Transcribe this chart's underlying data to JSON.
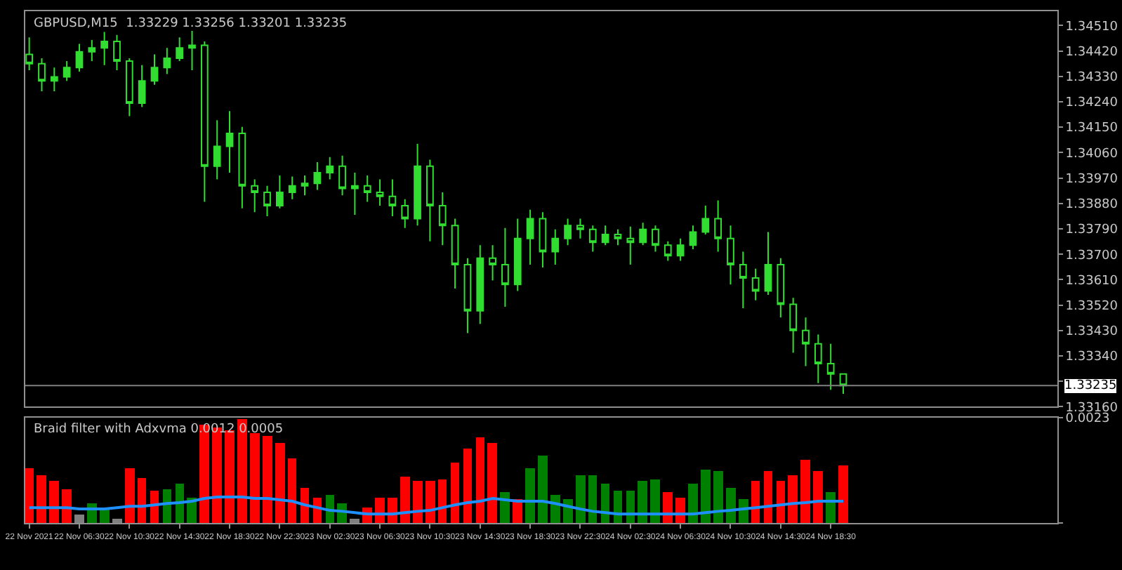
{
  "chart_data": [
    {
      "type": "candlestick",
      "title": "GBPUSD,M15  1.33229 1.33256 1.33201 1.33235",
      "color": "#32dd32",
      "tick_labels": "y",
      "x": [
        "2021-11-22T02:30",
        "2021-11-22T03:30",
        "2021-11-22T04:30",
        "2021-11-22T05:30",
        "2021-11-22T06:30",
        "2021-11-22T07:30",
        "2021-11-22T08:30",
        "2021-11-22T09:30",
        "2021-11-22T10:30",
        "2021-11-22T11:30",
        "2021-11-22T12:30",
        "2021-11-22T13:30",
        "2021-11-22T14:30",
        "2021-11-22T15:30",
        "2021-11-22T16:30",
        "2021-11-22T17:30",
        "2021-11-22T18:30",
        "2021-11-22T19:30",
        "2021-11-22T20:30",
        "2021-11-22T21:30",
        "2021-11-22T22:30",
        "2021-11-22T23:30",
        "2021-11-23T00:30",
        "2021-11-23T01:30",
        "2021-11-23T02:30",
        "2021-11-23T03:30",
        "2021-11-23T04:30",
        "2021-11-23T05:30",
        "2021-11-23T06:30",
        "2021-11-23T07:30",
        "2021-11-23T08:30",
        "2021-11-23T09:30",
        "2021-11-23T10:30",
        "2021-11-23T11:30",
        "2021-11-23T12:30",
        "2021-11-23T13:30",
        "2021-11-23T14:30",
        "2021-11-23T15:30",
        "2021-11-23T16:30",
        "2021-11-23T17:30",
        "2021-11-23T18:30",
        "2021-11-23T19:30",
        "2021-11-23T20:30",
        "2021-11-23T21:30",
        "2021-11-23T22:30",
        "2021-11-23T23:30",
        "2021-11-24T00:30",
        "2021-11-24T01:30",
        "2021-11-24T02:30",
        "2021-11-24T03:30",
        "2021-11-24T04:30",
        "2021-11-24T05:30",
        "2021-11-24T06:30",
        "2021-11-24T07:30",
        "2021-11-24T08:30",
        "2021-11-24T09:30",
        "2021-11-24T10:30",
        "2021-11-24T11:30",
        "2021-11-24T12:30",
        "2021-11-24T13:30",
        "2021-11-24T14:30",
        "2021-11-24T15:30",
        "2021-11-24T16:30",
        "2021-11-24T17:30",
        "2021-11-24T18:30",
        "2021-11-24T19:30"
      ],
      "ohlc": [
        [
          1.34408,
          1.34468,
          1.34352,
          1.34375
        ],
        [
          1.34375,
          1.34394,
          1.34277,
          1.34314
        ],
        [
          1.34314,
          1.34361,
          1.34277,
          1.34328
        ],
        [
          1.34328,
          1.34384,
          1.34314,
          1.34361
        ],
        [
          1.34361,
          1.34445,
          1.34347,
          1.34417
        ],
        [
          1.34417,
          1.34459,
          1.34384,
          1.34431
        ],
        [
          1.34431,
          1.34487,
          1.3437,
          1.34454
        ],
        [
          1.34454,
          1.34477,
          1.34352,
          1.34384
        ],
        [
          1.34384,
          1.34394,
          1.34189,
          1.34235
        ],
        [
          1.34235,
          1.3437,
          1.34221,
          1.34314
        ],
        [
          1.34314,
          1.34408,
          1.343,
          1.34361
        ],
        [
          1.34361,
          1.34431,
          1.34338,
          1.34394
        ],
        [
          1.34394,
          1.34468,
          1.34384,
          1.34431
        ],
        [
          1.34431,
          1.34491,
          1.34352,
          1.3444
        ],
        [
          1.3444,
          1.34454,
          1.33886,
          1.34012
        ],
        [
          1.34012,
          1.34175,
          1.33965,
          1.34082
        ],
        [
          1.34082,
          1.34207,
          1.33989,
          1.34128
        ],
        [
          1.34128,
          1.34151,
          1.33863,
          1.33942
        ],
        [
          1.33942,
          1.33965,
          1.33849,
          1.33919
        ],
        [
          1.33919,
          1.33942,
          1.33835,
          1.33872
        ],
        [
          1.33872,
          1.33979,
          1.33863,
          1.33919
        ],
        [
          1.33919,
          1.33975,
          1.33895,
          1.33942
        ],
        [
          1.33942,
          1.33979,
          1.33909,
          1.33951
        ],
        [
          1.33951,
          1.34026,
          1.33928,
          1.33989
        ],
        [
          1.33989,
          1.34044,
          1.33965,
          1.34012
        ],
        [
          1.34012,
          1.34049,
          1.33909,
          1.33933
        ],
        [
          1.33933,
          1.33989,
          1.3384,
          1.33942
        ],
        [
          1.33942,
          1.33979,
          1.33886,
          1.33919
        ],
        [
          1.33919,
          1.33965,
          1.33872,
          1.33905
        ],
        [
          1.33905,
          1.33965,
          1.33835,
          1.33872
        ],
        [
          1.33872,
          1.33895,
          1.33793,
          1.33826
        ],
        [
          1.33826,
          1.34091,
          1.33802,
          1.34012
        ],
        [
          1.34012,
          1.34035,
          1.33746,
          1.33872
        ],
        [
          1.33872,
          1.33919,
          1.33732,
          1.33802
        ],
        [
          1.33802,
          1.33826,
          1.33579,
          1.33663
        ],
        [
          1.33663,
          1.33686,
          1.33421,
          1.335
        ],
        [
          1.335,
          1.33732,
          1.33453,
          1.33686
        ],
        [
          1.33686,
          1.33732,
          1.33607,
          1.33663
        ],
        [
          1.33663,
          1.33793,
          1.33514,
          1.33593
        ],
        [
          1.33593,
          1.33826,
          1.3357,
          1.33756
        ],
        [
          1.33756,
          1.33858,
          1.33663,
          1.33826
        ],
        [
          1.33826,
          1.33849,
          1.33653,
          1.33709
        ],
        [
          1.33709,
          1.33788,
          1.33663,
          1.33756
        ],
        [
          1.33756,
          1.33826,
          1.33732,
          1.33802
        ],
        [
          1.33802,
          1.33826,
          1.33756,
          1.33788
        ],
        [
          1.33788,
          1.33802,
          1.33709,
          1.33742
        ],
        [
          1.33742,
          1.33802,
          1.33732,
          1.3377
        ],
        [
          1.3377,
          1.33788,
          1.33732,
          1.33756
        ],
        [
          1.33756,
          1.33798,
          1.33663,
          1.33742
        ],
        [
          1.33742,
          1.33812,
          1.33732,
          1.33788
        ],
        [
          1.33788,
          1.33802,
          1.33709,
          1.33732
        ],
        [
          1.33732,
          1.33746,
          1.33677,
          1.33695
        ],
        [
          1.33695,
          1.33756,
          1.33677,
          1.33732
        ],
        [
          1.33732,
          1.33802,
          1.33718,
          1.33779
        ],
        [
          1.33779,
          1.33872,
          1.3377,
          1.33826
        ],
        [
          1.33826,
          1.33891,
          1.33709,
          1.33756
        ],
        [
          1.33756,
          1.33802,
          1.33593,
          1.33663
        ],
        [
          1.33663,
          1.33709,
          1.33509,
          1.33616
        ],
        [
          1.33616,
          1.33649,
          1.33537,
          1.3357
        ],
        [
          1.3357,
          1.33779,
          1.33556,
          1.33663
        ],
        [
          1.33663,
          1.33686,
          1.33476,
          1.33523
        ],
        [
          1.33523,
          1.33546,
          1.33351,
          1.3343
        ],
        [
          1.3343,
          1.33476,
          1.33304,
          1.33383
        ],
        [
          1.33383,
          1.33416,
          1.33244,
          1.33313
        ],
        [
          1.33313,
          1.33383,
          1.3322,
          1.33276
        ],
        [
          1.33276,
          1.33276,
          1.33206,
          1.33235
        ]
      ],
      "xlim": [
        "2021-11-22T02:11",
        "2021-11-25T12:36"
      ],
      "ylim": [
        1.3316,
        1.34561
      ],
      "yticks": [
        {
          "value": 1.3451,
          "label": "1.34510"
        },
        {
          "value": 1.3442,
          "label": "1.34420"
        },
        {
          "value": 1.3433,
          "label": "1.34330"
        },
        {
          "value": 1.3424,
          "label": "1.34240"
        },
        {
          "value": 1.3415,
          "label": "1.34150"
        },
        {
          "value": 1.3406,
          "label": "1.34060"
        },
        {
          "value": 1.3397,
          "label": "1.33970"
        },
        {
          "value": 1.3388,
          "label": "1.33880"
        },
        {
          "value": 1.3379,
          "label": "1.33790"
        },
        {
          "value": 1.337,
          "label": "1.33700"
        },
        {
          "value": 1.3361,
          "label": "1.33610"
        },
        {
          "value": 1.3352,
          "label": "1.33520"
        },
        {
          "value": 1.3343,
          "label": "1.33430"
        },
        {
          "value": 1.3334,
          "label": "1.33340"
        },
        {
          "value": 1.3325,
          "label": null
        },
        {
          "value": 1.3316,
          "label": "1.33160"
        }
      ],
      "ref_lines": [
        {
          "axis": "y",
          "value": 1.33235,
          "label": "1.33235",
          "color": "#808080"
        }
      ]
    },
    {
      "type": "bar",
      "title": "Braid filter with Adxvma 0.0012 0.0005",
      "x": [
        "2021-11-22T02:30",
        "2021-11-22T03:30",
        "2021-11-22T04:30",
        "2021-11-22T05:30",
        "2021-11-22T06:30",
        "2021-11-22T07:30",
        "2021-11-22T08:30",
        "2021-11-22T09:30",
        "2021-11-22T10:30",
        "2021-11-22T11:30",
        "2021-11-22T12:30",
        "2021-11-22T13:30",
        "2021-11-22T14:30",
        "2021-11-22T15:30",
        "2021-11-22T16:30",
        "2021-11-22T17:30",
        "2021-11-22T18:30",
        "2021-11-22T19:30",
        "2021-11-22T20:30",
        "2021-11-22T21:30",
        "2021-11-22T22:30",
        "2021-11-22T23:30",
        "2021-11-23T00:30",
        "2021-11-23T01:30",
        "2021-11-23T02:30",
        "2021-11-23T03:30",
        "2021-11-23T04:30",
        "2021-11-23T05:30",
        "2021-11-23T06:30",
        "2021-11-23T07:30",
        "2021-11-23T08:30",
        "2021-11-23T09:30",
        "2021-11-23T10:30",
        "2021-11-23T11:30",
        "2021-11-23T12:30",
        "2021-11-23T13:30",
        "2021-11-23T14:30",
        "2021-11-23T15:30",
        "2021-11-23T16:30",
        "2021-11-23T17:30",
        "2021-11-23T18:30",
        "2021-11-23T19:30",
        "2021-11-23T20:30",
        "2021-11-23T21:30",
        "2021-11-23T22:30",
        "2021-11-23T23:30",
        "2021-11-24T00:30",
        "2021-11-24T01:30",
        "2021-11-24T02:30",
        "2021-11-24T03:30",
        "2021-11-24T04:30",
        "2021-11-24T05:30",
        "2021-11-24T06:30",
        "2021-11-24T07:30",
        "2021-11-24T08:30",
        "2021-11-24T09:30",
        "2021-11-24T10:30",
        "2021-11-24T11:30",
        "2021-11-24T12:30",
        "2021-11-24T13:30",
        "2021-11-24T14:30",
        "2021-11-24T15:30",
        "2021-11-24T16:30",
        "2021-11-24T17:30",
        "2021-11-24T18:30",
        "2021-11-24T19:30"
      ],
      "series": [
        {
          "type": "bar",
          "values": [
            0.00119,
            0.00105,
            0.00091,
            0.00074,
            0.0002,
            0.00043,
            0.00034,
            0.00011,
            0.00119,
            0.00099,
            0.00071,
            0.00074,
            0.00085,
            0.00057,
            0.00216,
            0.0021,
            0.00204,
            0.00227,
            0.00196,
            0.0019,
            0.00176,
            0.00142,
            0.00077,
            0.00057,
            0.00062,
            0.00045,
            0.00011,
            0.00034,
            0.00057,
            0.00057,
            0.00102,
            0.00091,
            0.00091,
            0.00097,
            0.00133,
            0.00162,
            0.00187,
            0.00176,
            0.00068,
            0.00054,
            0.00119,
            0.00148,
            0.00062,
            0.00054,
            0.00105,
            0.00105,
            0.00085,
            0.00071,
            0.00071,
            0.00091,
            0.00097,
            0.00068,
            0.00057,
            0.00085,
            0.00116,
            0.00114,
            0.00077,
            0.00054,
            0.00091,
            0.00114,
            0.00091,
            0.00105,
            0.00139,
            0.00114,
            0.00068,
            0.00125
          ],
          "colors": [
            "#ff0000",
            "#ff0000",
            "#ff0000",
            "#ff0000",
            "#808080",
            "#008000",
            "#008000",
            "#808080",
            "#ff0000",
            "#ff0000",
            "#ff0000",
            "#008000",
            "#008000",
            "#008000",
            "#ff0000",
            "#ff0000",
            "#ff0000",
            "#ff0000",
            "#ff0000",
            "#ff0000",
            "#ff0000",
            "#ff0000",
            "#ff0000",
            "#ff0000",
            "#008000",
            "#008000",
            "#808080",
            "#ff0000",
            "#ff0000",
            "#ff0000",
            "#ff0000",
            "#ff0000",
            "#ff0000",
            "#ff0000",
            "#ff0000",
            "#ff0000",
            "#ff0000",
            "#ff0000",
            "#008000",
            "#ff0000",
            "#008000",
            "#008000",
            "#008000",
            "#008000",
            "#008000",
            "#008000",
            "#008000",
            "#008000",
            "#008000",
            "#008000",
            "#008000",
            "#ff0000",
            "#ff0000",
            "#008000",
            "#008000",
            "#008000",
            "#008000",
            "#008000",
            "#ff0000",
            "#ff0000",
            "#ff0000",
            "#ff0000",
            "#ff0000",
            "#ff0000",
            "#008000",
            "#ff0000"
          ]
        },
        {
          "type": "line",
          "color": "#1e90ff",
          "values": [
            0.00034,
            0.00034,
            0.00034,
            0.00034,
            0.00031,
            0.00031,
            0.00031,
            0.00034,
            0.00037,
            0.00037,
            0.0004,
            0.00043,
            0.00045,
            0.00048,
            0.00054,
            0.00057,
            0.00057,
            0.00057,
            0.00054,
            0.00054,
            0.00051,
            0.00048,
            0.0004,
            0.00034,
            0.00028,
            0.00026,
            0.00023,
            0.0002,
            0.0002,
            0.0002,
            0.00023,
            0.00026,
            0.00028,
            0.00034,
            0.0004,
            0.00045,
            0.00048,
            0.00054,
            0.00051,
            0.00048,
            0.00048,
            0.00048,
            0.00043,
            0.00037,
            0.00031,
            0.00026,
            0.00023,
            0.0002,
            0.0002,
            0.0002,
            0.0002,
            0.0002,
            0.0002,
            0.0002,
            0.00023,
            0.00026,
            0.00028,
            0.00031,
            0.00034,
            0.00037,
            0.0004,
            0.00043,
            0.00045,
            0.00048,
            0.00048,
            0.00048
          ]
        }
      ],
      "xlim": [
        "2021-11-22T02:11",
        "2021-11-25T12:36"
      ],
      "xticks": [
        {
          "value": "2021-11-22T02:30",
          "label": "22 Nov 2021"
        },
        {
          "value": "2021-11-22T06:30",
          "label": "22 Nov 06:30"
        },
        {
          "value": "2021-11-22T10:30",
          "label": "22 Nov 10:30"
        },
        {
          "value": "2021-11-22T14:30",
          "label": "22 Nov 14:30"
        },
        {
          "value": "2021-11-22T18:30",
          "label": "22 Nov 18:30"
        },
        {
          "value": "2021-11-22T22:30",
          "label": "22 Nov 22:30"
        },
        {
          "value": "2021-11-23T02:30",
          "label": "23 Nov 02:30"
        },
        {
          "value": "2021-11-23T06:30",
          "label": "23 Nov 06:30"
        },
        {
          "value": "2021-11-23T10:30",
          "label": "23 Nov 10:30"
        },
        {
          "value": "2021-11-23T14:30",
          "label": "23 Nov 14:30"
        },
        {
          "value": "2021-11-23T18:30",
          "label": "23 Nov 18:30"
        },
        {
          "value": "2021-11-23T22:30",
          "label": "23 Nov 22:30"
        },
        {
          "value": "2021-11-24T02:30",
          "label": "24 Nov 02:30"
        },
        {
          "value": "2021-11-24T06:30",
          "label": "24 Nov 06:30"
        },
        {
          "value": "2021-11-24T10:30",
          "label": "24 Nov 10:30"
        },
        {
          "value": "2021-11-24T14:30",
          "label": "24 Nov 14:30"
        },
        {
          "value": "2021-11-24T18:30",
          "label": "24 Nov 18:30"
        }
      ],
      "ylim": [
        0,
        0.0023
      ],
      "yticks": [
        {
          "value": 0,
          "label": null
        },
        0.0023
      ]
    }
  ]
}
